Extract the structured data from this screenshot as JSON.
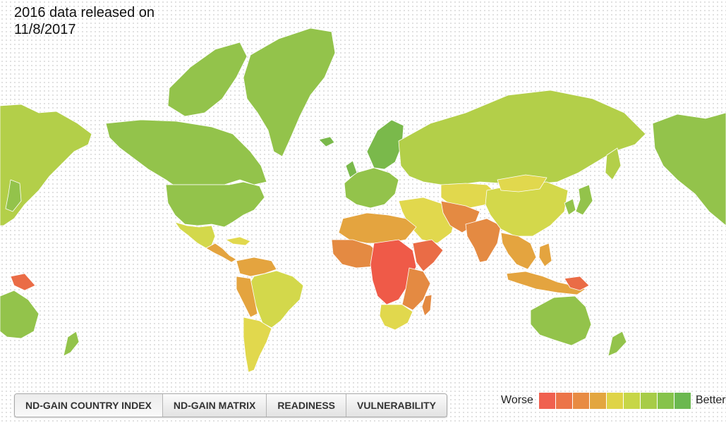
{
  "release_note": {
    "line1": "2016 data released on",
    "line2": "11/8/2017"
  },
  "tabs": [
    {
      "label": "ND-GAIN COUNTRY INDEX",
      "active": true
    },
    {
      "label": "ND-GAIN MATRIX",
      "active": false
    },
    {
      "label": "READINESS",
      "active": false
    },
    {
      "label": "VULNERABILITY",
      "active": false
    }
  ],
  "legend": {
    "worse_label": "Worse",
    "better_label": "Better",
    "scale_colors": [
      "#f0604f",
      "#ec7448",
      "#e88b43",
      "#e3a63f",
      "#dfd447",
      "#c7d647",
      "#a7cc48",
      "#86c34a",
      "#6bb84f"
    ]
  },
  "map": {
    "ocean_color": "#ffffff",
    "border_color": "#ffffff",
    "colors": {
      "best": "#7ab94b",
      "good": "#93c34b",
      "fair": "#b3cf49",
      "mid": "#d3d84b",
      "yellow": "#e1d84d",
      "orange": "#e4a43f",
      "dark_orange": "#e48a42",
      "red_orange": "#ea6c46",
      "red": "#ef5a48"
    }
  }
}
